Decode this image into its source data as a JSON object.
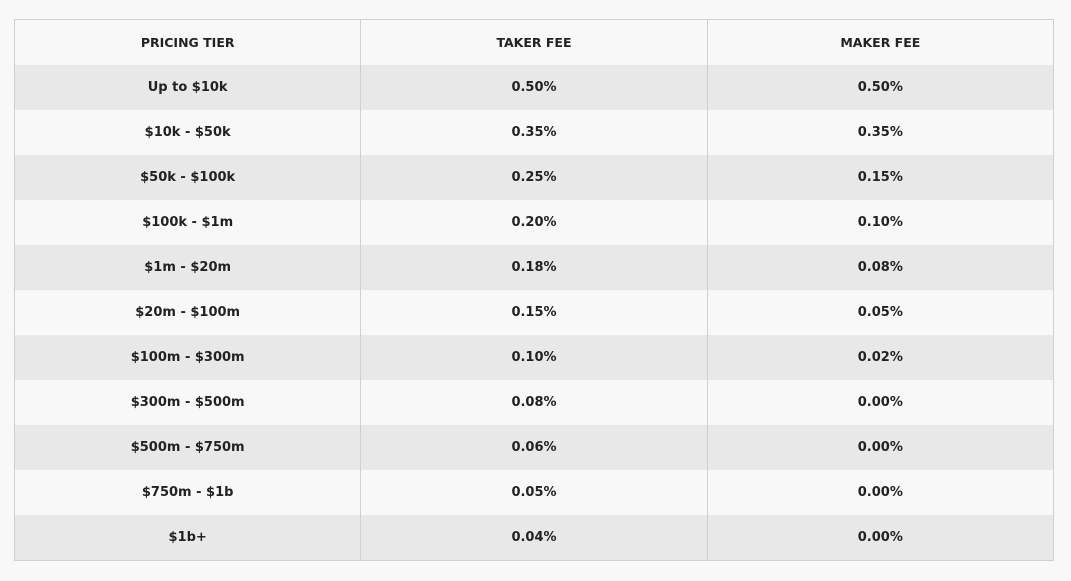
{
  "table": {
    "header": [
      "PRICING TIER",
      "TAKER FEE",
      "MAKER FEE"
    ],
    "rows": [
      [
        "Up to $10k",
        "0.50%",
        "0.50%"
      ],
      [
        "$10k - $50k",
        "0.35%",
        "0.35%"
      ],
      [
        "$50k - $100k",
        "0.25%",
        "0.15%"
      ],
      [
        "$100k - $1m",
        "0.20%",
        "0.10%"
      ],
      [
        "$1m - $20m",
        "0.18%",
        "0.08%"
      ],
      [
        "$20m - $100m",
        "0.15%",
        "0.05%"
      ],
      [
        "$100m - $300m",
        "0.10%",
        "0.02%"
      ],
      [
        "$300m - $500m",
        "0.08%",
        "0.00%"
      ],
      [
        "$500m - $750m",
        "0.06%",
        "0.00%"
      ],
      [
        "$750m - $1b",
        "0.05%",
        "0.00%"
      ],
      [
        "$1b+",
        "0.04%",
        "0.00%"
      ]
    ]
  }
}
